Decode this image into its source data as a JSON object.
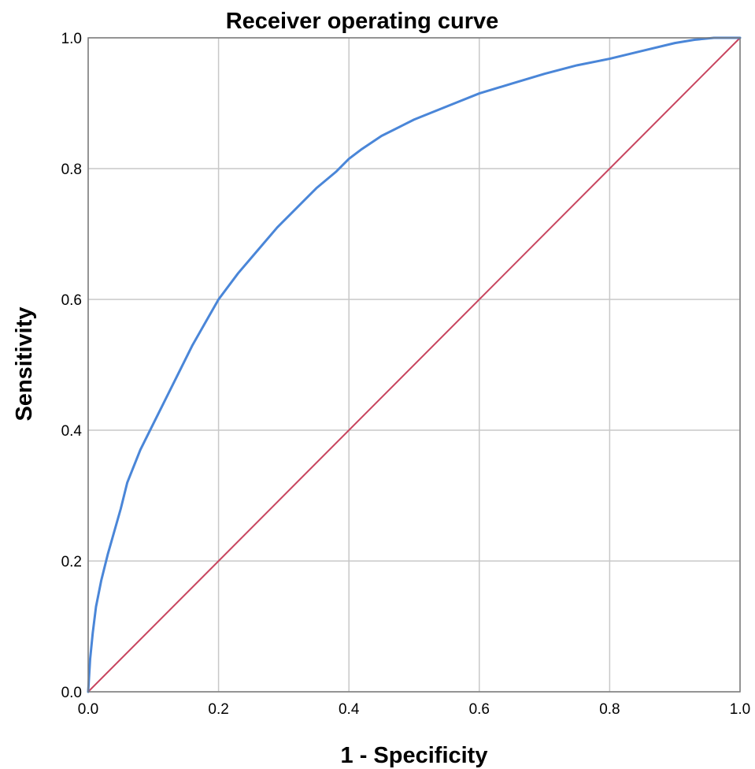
{
  "chart_data": {
    "type": "line",
    "title": "Receiver operating curve",
    "xlabel": "1 - Specificity",
    "ylabel": "Sensitivity",
    "xlim": [
      0.0,
      1.0
    ],
    "ylim": [
      0.0,
      1.0
    ],
    "xticks": [
      "0.0",
      "0.2",
      "0.4",
      "0.6",
      "0.8",
      "1.0"
    ],
    "yticks": [
      "0.0",
      "0.2",
      "0.4",
      "0.6",
      "0.8",
      "1.0"
    ],
    "grid": true,
    "legend": "none",
    "series": [
      {
        "color": "#4a86d8",
        "x": [
          0.0,
          0.003,
          0.007,
          0.012,
          0.02,
          0.03,
          0.04,
          0.05,
          0.06,
          0.08,
          0.1,
          0.12,
          0.14,
          0.16,
          0.18,
          0.2,
          0.23,
          0.26,
          0.29,
          0.32,
          0.35,
          0.38,
          0.4,
          0.42,
          0.45,
          0.48,
          0.5,
          0.55,
          0.6,
          0.65,
          0.7,
          0.75,
          0.8,
          0.85,
          0.9,
          0.93,
          0.96,
          1.0
        ],
        "y": [
          0.0,
          0.05,
          0.09,
          0.13,
          0.17,
          0.21,
          0.245,
          0.28,
          0.32,
          0.37,
          0.41,
          0.45,
          0.49,
          0.53,
          0.565,
          0.6,
          0.64,
          0.675,
          0.71,
          0.74,
          0.77,
          0.795,
          0.815,
          0.83,
          0.85,
          0.865,
          0.875,
          0.895,
          0.915,
          0.93,
          0.945,
          0.958,
          0.968,
          0.98,
          0.992,
          0.997,
          1.0,
          1.0
        ]
      },
      {
        "color": "#c8455f",
        "x": [
          0.0,
          1.0
        ],
        "y": [
          0.0,
          1.0
        ]
      }
    ]
  }
}
